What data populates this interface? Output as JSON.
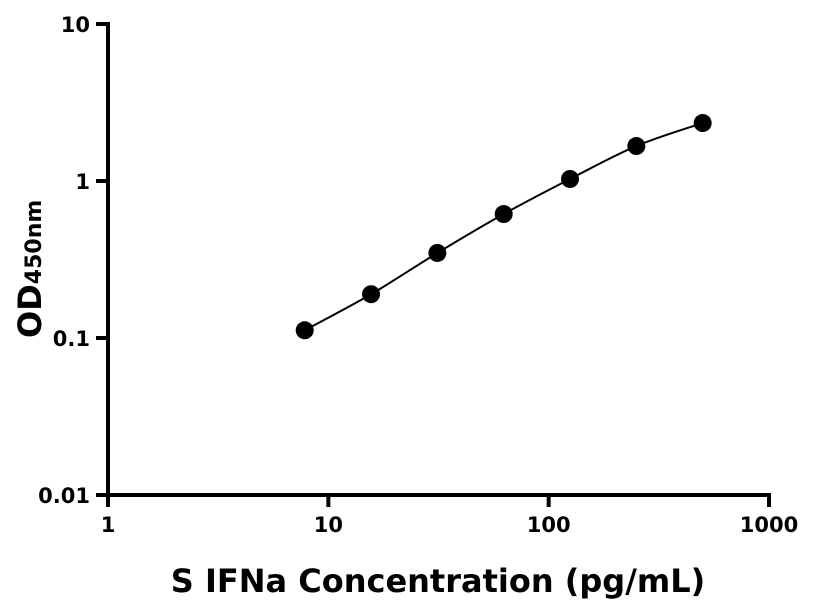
{
  "chart_data": {
    "type": "scatter",
    "xlabel": "S IFNa Concentration (pg/mL)",
    "ylabel": "OD",
    "ylabel_subscript": "450nm",
    "x_scale": "log",
    "y_scale": "log",
    "xlim": [
      1,
      1000
    ],
    "ylim": [
      0.01,
      10
    ],
    "x_ticks": [
      "1",
      "10",
      "100",
      "1000"
    ],
    "y_ticks": [
      "0.01",
      "0.1",
      "1",
      "10"
    ],
    "grid": false,
    "fitted_curve": true,
    "marker_color": "#000000",
    "series": [
      {
        "x": [
          7.8125,
          15.625,
          31.25,
          62.5,
          125,
          250,
          500
        ],
        "y": [
          0.112,
          0.19,
          0.348,
          0.616,
          1.03,
          1.67,
          2.34
        ]
      }
    ]
  }
}
